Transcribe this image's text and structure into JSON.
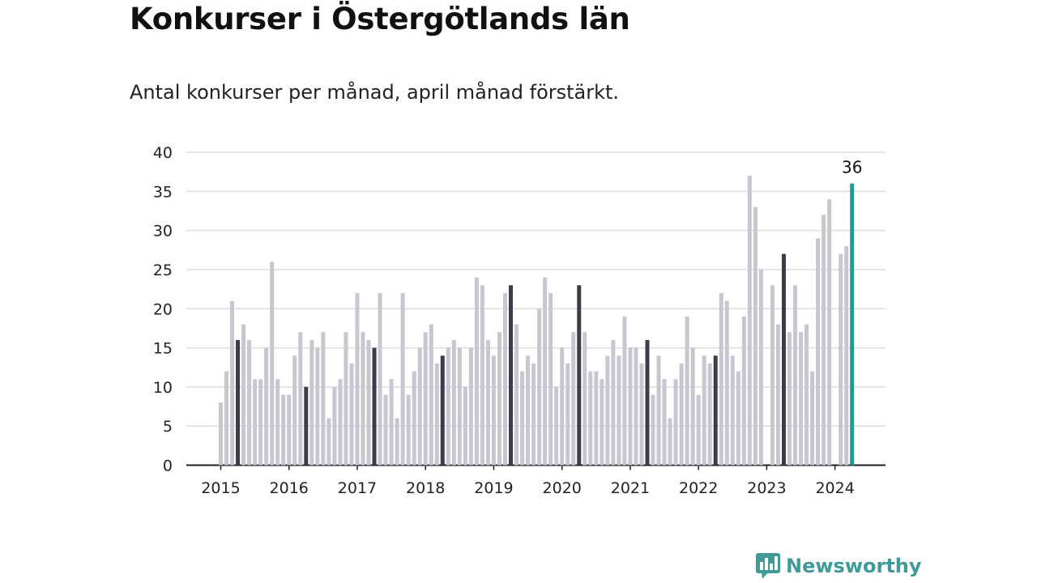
{
  "title": "Konkurser i Östergötlands län",
  "subtitle": "Antal konkurser per månad, april månad förstärkt.",
  "brand": {
    "name": "Newsworthy",
    "icon": "newsworthy-chart-bubble-icon",
    "color": "#3f9a98"
  },
  "colors": {
    "bar": "#c8c7d1",
    "april": "#3d3c4c",
    "latest": "#159f95",
    "grid": "#dddddd",
    "axis": "#222222"
  },
  "chart_data": {
    "type": "bar",
    "ylim": [
      0,
      40
    ],
    "yticks": [
      "0",
      "5",
      "10",
      "15",
      "20",
      "25",
      "30",
      "35",
      "40"
    ],
    "xticks": [
      "2015",
      "2016",
      "2017",
      "2018",
      "2019",
      "2020",
      "2021",
      "2022",
      "2023",
      "2024"
    ],
    "grid": true,
    "highlight": "april",
    "latest_label": "36",
    "series": [
      {
        "year": "2015",
        "values": [
          8,
          12,
          21,
          16,
          18,
          16,
          11,
          11,
          15,
          26,
          11,
          9
        ]
      },
      {
        "year": "2016",
        "values": [
          9,
          14,
          17,
          10,
          16,
          15,
          17,
          6,
          10,
          11,
          17,
          13
        ]
      },
      {
        "year": "2017",
        "values": [
          22,
          17,
          16,
          15,
          22,
          9,
          11,
          6,
          22,
          9,
          12,
          15
        ]
      },
      {
        "year": "2018",
        "values": [
          17,
          18,
          13,
          14,
          15,
          16,
          15,
          10,
          15,
          24,
          23,
          16
        ]
      },
      {
        "year": "2019",
        "values": [
          14,
          17,
          22,
          23,
          18,
          12,
          14,
          13,
          20,
          24,
          22,
          10
        ]
      },
      {
        "year": "2020",
        "values": [
          15,
          13,
          17,
          23,
          17,
          12,
          12,
          11,
          14,
          16,
          14,
          19
        ]
      },
      {
        "year": "2021",
        "values": [
          15,
          15,
          13,
          16,
          9,
          14,
          11,
          6,
          11,
          13,
          19,
          15
        ]
      },
      {
        "year": "2022",
        "values": [
          9,
          14,
          13,
          14,
          22,
          21,
          14,
          12,
          19,
          37,
          33,
          25
        ]
      },
      {
        "year": "2023",
        "values": [
          0,
          23,
          18,
          27,
          17,
          23,
          17,
          18,
          12,
          29,
          32,
          34
        ]
      },
      {
        "year": "2024",
        "values": [
          0,
          27,
          28,
          36
        ]
      }
    ]
  }
}
